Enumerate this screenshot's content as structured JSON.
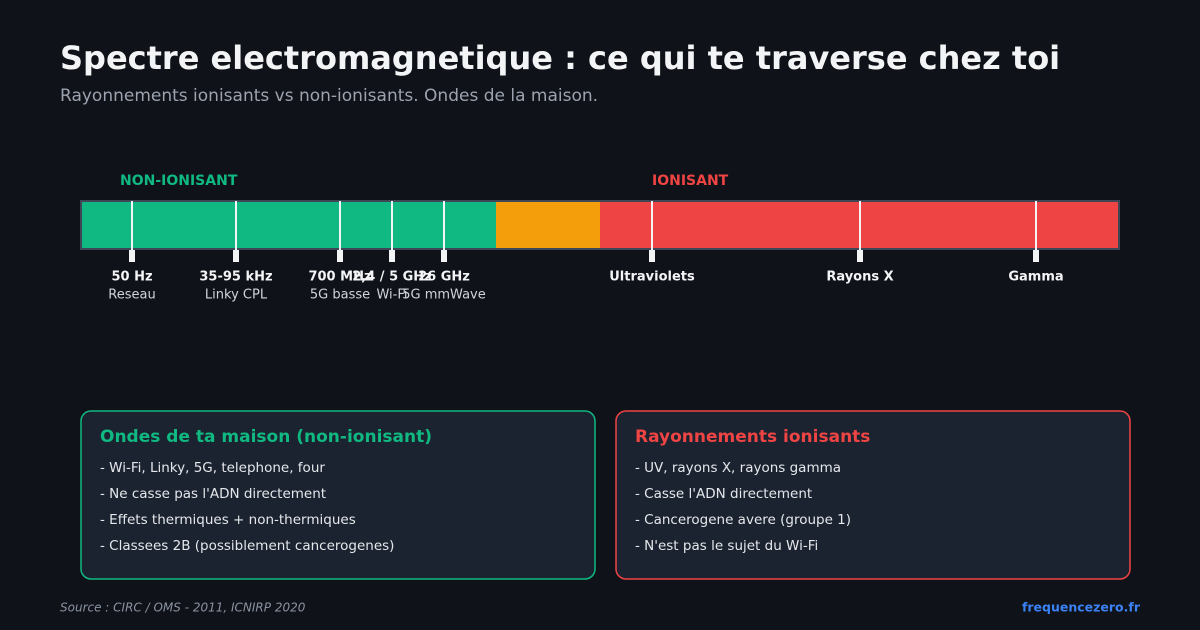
{
  "header": {
    "title": "Spectre electromagnetique : ce qui te traverse chez toi",
    "subtitle": "Rayonnements ionisants vs non-ionisants. Ondes de la maison."
  },
  "spectrum": {
    "non_ionizing_label": "NON-IONISANT",
    "ionizing_label": "IONISANT",
    "markers": [
      {
        "label": "50 Hz",
        "sublabel": "Reseau"
      },
      {
        "label": "35-95 kHz",
        "sublabel": "Linky CPL"
      },
      {
        "label": "700 MHz",
        "sublabel": "5G basse"
      },
      {
        "label": "2,4 / 5 GHz",
        "sublabel": "Wi-Fi"
      },
      {
        "label": "26 GHz",
        "sublabel": "5G mmWave"
      },
      {
        "label": "Ultraviolets"
      },
      {
        "label": "Rayons X"
      },
      {
        "label": "Gamma"
      }
    ]
  },
  "cards": [
    {
      "title": "Ondes de ta maison (non-ionisant)",
      "items": [
        "- Wi-Fi, Linky, 5G, telephone, four",
        "- Ne casse pas l'ADN directement",
        "- Effets thermiques + non-thermiques",
        "- Classees 2B (possiblement cancerogenes)"
      ]
    },
    {
      "title": "Rayonnements ionisants",
      "items": [
        "- UV, rayons X, rayons gamma",
        "- Casse l'ADN directement",
        "- Cancerogene avere (groupe 1)",
        "- N'est pas le sujet du Wi-Fi"
      ]
    }
  ],
  "footer": {
    "source": "Source : CIRC / OMS - 2011, ICNIRP 2020",
    "site": "frequencezero.fr"
  }
}
